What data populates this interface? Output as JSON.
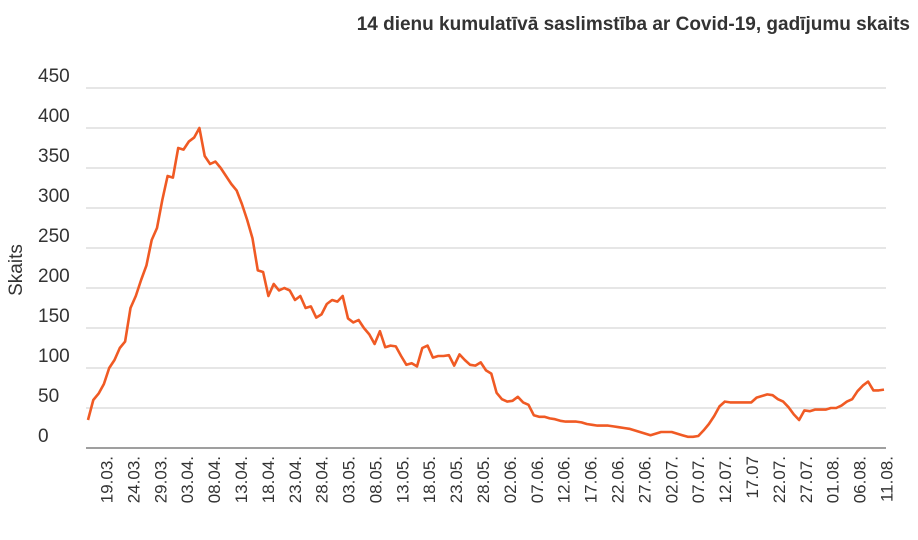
{
  "chart_data": {
    "type": "line",
    "title": "14 dienu kumulatīvā saslimstība ar Covid-19, gadījumu skaits",
    "ylabel": "Skaits",
    "xlabel": "",
    "ylim": [
      0,
      450
    ],
    "y_ticks": [
      "0",
      "50",
      "100",
      "150",
      "200",
      "250",
      "300",
      "350",
      "400",
      "450"
    ],
    "x_ticks": [
      "19.03.",
      "24.03.",
      "29.03.",
      "03.04.",
      "08.04.",
      "13.04.",
      "18.04.",
      "23.04.",
      "28.04.",
      "03.05.",
      "08.05.",
      "13.05.",
      "18.05.",
      "23.05.",
      "28.05.",
      "02.06.",
      "07.06.",
      "12.06.",
      "17.06.",
      "22.06.",
      "27.06.",
      "02.07.",
      "07.07.",
      "12.07.",
      "17.07",
      "22.07.",
      "27.07.",
      "01.08.",
      "06.08.",
      "11.08."
    ],
    "grid": true,
    "series_color": "#f05a24",
    "series": [
      {
        "values": [
          35,
          60,
          68,
          80,
          100,
          110,
          125,
          133,
          175,
          190,
          210,
          228,
          260,
          275,
          310,
          340,
          338,
          375,
          373,
          383,
          388,
          400,
          365,
          355,
          358,
          350,
          340,
          330,
          322,
          305,
          285,
          262,
          222,
          220,
          190,
          205,
          197,
          200,
          197,
          185,
          190,
          175,
          177,
          163,
          167,
          180,
          185,
          183,
          190,
          162,
          157,
          160,
          150,
          142,
          130,
          146,
          126,
          128,
          127,
          115,
          104,
          106,
          102,
          125,
          128,
          113,
          115,
          115,
          116,
          103,
          117,
          110,
          104,
          103,
          107,
          97,
          93,
          69,
          61,
          58,
          59,
          64,
          57,
          54,
          41,
          39,
          39,
          37,
          36,
          34,
          33,
          33,
          33,
          32,
          30,
          29,
          28,
          28,
          28,
          27,
          26,
          25,
          24,
          22,
          20,
          18,
          16,
          18,
          20,
          20,
          20,
          18,
          16,
          14,
          14,
          15,
          22,
          30,
          40,
          52,
          58,
          57,
          57,
          57,
          57,
          57,
          63,
          65,
          67,
          66,
          61,
          58,
          51,
          42,
          35,
          47,
          46,
          48,
          48,
          48,
          50,
          50,
          53,
          58,
          61,
          71,
          78,
          83,
          72,
          72,
          73
        ]
      }
    ]
  }
}
